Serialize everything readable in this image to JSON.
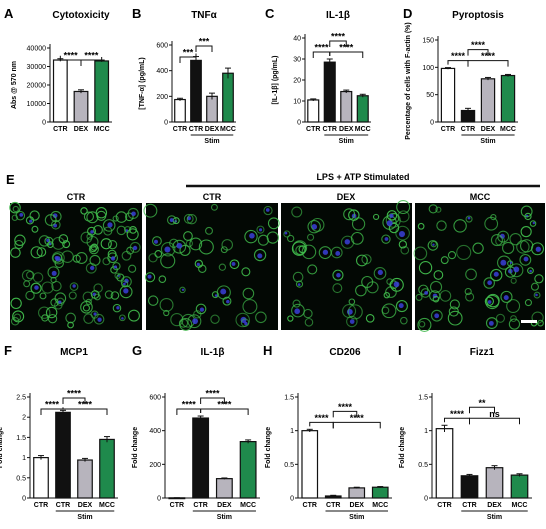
{
  "figure": {
    "micro_label": "LPS + ATP Stimulated",
    "micro_panel_letter": "E",
    "micro_titles": [
      "CTR",
      "CTR",
      "DEX",
      "MCC"
    ]
  },
  "colors": {
    "CTR": "#ffffff",
    "Stim CTR": "#111111",
    "DEX": "#b7b4bd",
    "MCC": "#1f8a4c",
    "cell_green": "#3fb84a",
    "nucleus_blue": "#3a3fd8",
    "micro_bg": "#030804"
  },
  "chart_data": [
    {
      "panel": "A",
      "type": "bar",
      "title": "Cytotoxicity",
      "ylabel": "Abs @ 570 nm",
      "categories": [
        "CTR",
        "DEX",
        "MCC"
      ],
      "colors": [
        "#ffffff",
        "#b7b4bd",
        "#1f8a4c"
      ],
      "values": [
        33500,
        16500,
        33000
      ],
      "errors": [
        700,
        900,
        500
      ],
      "ylim": [
        0,
        40000
      ],
      "yticks": [
        0,
        10000,
        20000,
        30000,
        40000
      ],
      "stim_label": "",
      "brackets": [
        {
          "from": 0,
          "to": 1,
          "label": "****",
          "level": 0
        },
        {
          "from": 1,
          "to": 2,
          "label": "****",
          "level": 0
        }
      ]
    },
    {
      "panel": "B",
      "type": "bar",
      "title": "TNFα",
      "ylabel": "[TNF-α] (pg/mL)",
      "categories": [
        "CTR",
        "CTR",
        "DEX",
        "MCC"
      ],
      "colors": [
        "#ffffff",
        "#111111",
        "#b7b4bd",
        "#1f8a4c"
      ],
      "values": [
        175,
        480,
        200,
        380
      ],
      "errors": [
        10,
        30,
        25,
        40
      ],
      "ylim": [
        0,
        600
      ],
      "yticks": [
        0,
        200,
        400,
        600
      ],
      "stim_label": "Stim",
      "brackets": [
        {
          "from": 0,
          "to": 1,
          "label": "***",
          "level": 0
        },
        {
          "from": 1,
          "to": 2,
          "label": "***",
          "level": 1
        }
      ]
    },
    {
      "panel": "C",
      "type": "bar",
      "title": "IL-1β",
      "ylabel": "[IL-1β] (pg/mL)",
      "categories": [
        "CTR",
        "CTR",
        "DEX",
        "MCC"
      ],
      "colors": [
        "#ffffff",
        "#111111",
        "#b7b4bd",
        "#1f8a4c"
      ],
      "values": [
        10.5,
        28.5,
        14.5,
        12.5
      ],
      "errors": [
        0.5,
        1.5,
        0.7,
        0.7
      ],
      "ylim": [
        0,
        40
      ],
      "yticks": [
        0,
        10,
        20,
        30,
        40
      ],
      "stim_label": "Stim",
      "brackets": [
        {
          "from": 0,
          "to": 1,
          "label": "****",
          "level": 0
        },
        {
          "from": 1,
          "to": 2,
          "label": "****",
          "level": 1
        },
        {
          "from": 1,
          "to": 3,
          "label": "****",
          "level": 0
        }
      ]
    },
    {
      "panel": "D",
      "type": "bar",
      "title": "Pyroptosis",
      "ylabel": "Percentage of cells with F-actin (%)",
      "categories": [
        "CTR",
        "CTR",
        "DEX",
        "MCC"
      ],
      "colors": [
        "#ffffff",
        "#111111",
        "#b7b4bd",
        "#1f8a4c"
      ],
      "values": [
        98,
        21,
        79,
        85
      ],
      "errors": [
        1.5,
        4,
        2.5,
        2
      ],
      "ylim": [
        0,
        150
      ],
      "yticks": [
        0,
        50,
        100,
        150
      ],
      "stim_label": "Stim",
      "brackets": [
        {
          "from": 0,
          "to": 1,
          "label": "****",
          "level": 0
        },
        {
          "from": 1,
          "to": 2,
          "label": "****",
          "level": 1
        },
        {
          "from": 1,
          "to": 3,
          "label": "****",
          "level": 0
        }
      ]
    },
    {
      "panel": "F",
      "type": "bar",
      "title": "MCP1",
      "ylabel": "Fold change",
      "categories": [
        "CTR",
        "CTR",
        "DEX",
        "MCC"
      ],
      "colors": [
        "#ffffff",
        "#111111",
        "#b7b4bd",
        "#1f8a4c"
      ],
      "values": [
        1.0,
        2.12,
        0.94,
        1.45
      ],
      "errors": [
        0.05,
        0.05,
        0.04,
        0.07
      ],
      "ylim": [
        0,
        2.5
      ],
      "yticks": [
        0,
        0.5,
        1.0,
        1.5,
        2.0,
        2.5
      ],
      "stim_label": "Stim",
      "brackets": [
        {
          "from": 0,
          "to": 1,
          "label": "****",
          "level": 0
        },
        {
          "from": 1,
          "to": 2,
          "label": "****",
          "level": 1
        },
        {
          "from": 1,
          "to": 3,
          "label": "****",
          "level": 0
        }
      ]
    },
    {
      "panel": "G",
      "type": "bar",
      "title": "IL-1β",
      "ylabel": "Fold change",
      "categories": [
        "CTR",
        "CTR",
        "DEX",
        "MCC"
      ],
      "colors": [
        "#ffffff",
        "#111111",
        "#b7b4bd",
        "#1f8a4c"
      ],
      "values": [
        1,
        475,
        115,
        335
      ],
      "errors": [
        0.5,
        12,
        4,
        10
      ],
      "ylim": [
        0,
        600
      ],
      "yticks": [
        0,
        200,
        400,
        600
      ],
      "stim_label": "Stim",
      "brackets": [
        {
          "from": 0,
          "to": 1,
          "label": "****",
          "level": 0
        },
        {
          "from": 1,
          "to": 2,
          "label": "****",
          "level": 1
        },
        {
          "from": 1,
          "to": 3,
          "label": "****",
          "level": 0
        }
      ]
    },
    {
      "panel": "H",
      "type": "bar",
      "title": "CD206",
      "ylabel": "Fold change",
      "categories": [
        "CTR",
        "CTR",
        "DEX",
        "MCC"
      ],
      "colors": [
        "#ffffff",
        "#111111",
        "#b7b4bd",
        "#1f8a4c"
      ],
      "values": [
        1.0,
        0.03,
        0.15,
        0.16
      ],
      "errors": [
        0.02,
        0.01,
        0.01,
        0.01
      ],
      "ylim": [
        0,
        1.5
      ],
      "yticks": [
        0,
        0.5,
        1.0,
        1.5
      ],
      "stim_label": "Stim",
      "brackets": [
        {
          "from": 0,
          "to": 1,
          "label": "****",
          "level": 0
        },
        {
          "from": 1,
          "to": 2,
          "label": "****",
          "level": 1
        },
        {
          "from": 1,
          "to": 3,
          "label": "****",
          "level": 0
        }
      ]
    },
    {
      "panel": "I",
      "type": "bar",
      "title": "Fizz1",
      "ylabel": "Fold change",
      "categories": [
        "CTR",
        "CTR",
        "DEX",
        "MCC"
      ],
      "colors": [
        "#ffffff",
        "#111111",
        "#b7b4bd",
        "#1f8a4c"
      ],
      "values": [
        1.03,
        0.33,
        0.45,
        0.34
      ],
      "errors": [
        0.05,
        0.02,
        0.03,
        0.02
      ],
      "ylim": [
        0,
        1.5
      ],
      "yticks": [
        0,
        0.5,
        1.0,
        1.5
      ],
      "stim_label": "Stim",
      "brackets": [
        {
          "from": 0,
          "to": 1,
          "label": "****",
          "level": 0
        },
        {
          "from": 1,
          "to": 2,
          "label": "**",
          "level": 1
        },
        {
          "from": 1,
          "to": 3,
          "label": "ns",
          "level": 0
        }
      ]
    }
  ]
}
